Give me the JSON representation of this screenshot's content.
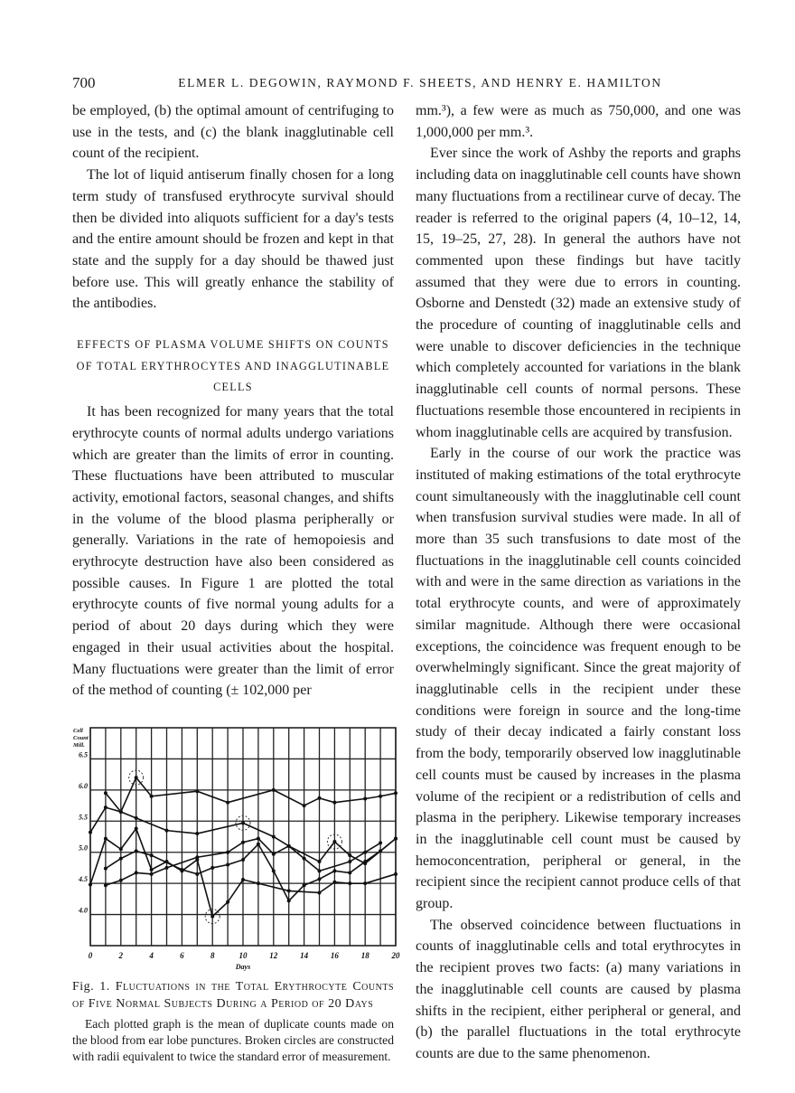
{
  "header": {
    "page_number": "700",
    "authors": "ELMER L. DEGOWIN, RAYMOND F. SHEETS, AND HENRY E. HAMILTON"
  },
  "left": {
    "paragraphs_top": [
      "be employed, (b) the optimal amount of centrifuging to use in the tests, and (c) the blank inagglutinable cell count of the recipient.",
      "The lot of liquid antiserum finally chosen for a long term study of transfused erythrocyte survival should then be divided into aliquots sufficient for a day's tests and the entire amount should be frozen and kept in that state and the supply for a day should be thawed just before use. This will greatly enhance the stability of the antibodies."
    ],
    "section_heading": "Effects of plasma volume shifts on counts of total erythrocytes and inagglutinable cells",
    "paragraphs_bottom": [
      "It has been recognized for many years that the total erythrocyte counts of normal adults undergo variations which are greater than the limits of error in counting. These fluctuations have been attributed to muscular activity, emotional factors, seasonal changes, and shifts in the volume of the blood plasma peripherally or generally. Variations in the rate of hemopoiesis and erythrocyte destruction have also been considered as possible causes. In Figure 1 are plotted the total erythrocyte counts of five normal young adults for a period of about 20 days during which they were engaged in their usual activities about the hospital. Many fluctuations were greater than the limit of error of the method of counting (± 102,000 per"
    ]
  },
  "figure": {
    "label": "Fig. 1.",
    "title": "Fluctuations in the Total Erythrocyte Counts of Five Normal Subjects During a Period of 20 Days",
    "note": "Each plotted graph is the mean of duplicate counts made on the blood from ear lobe punctures. Broken circles are constructed with radii equivalent to twice the standard error of measurement."
  },
  "right": {
    "paragraphs": [
      "mm.³), a few were as much as 750,000, and one was 1,000,000 per mm.³.",
      "Ever since the work of Ashby the reports and graphs including data on inagglutinable cell counts have shown many fluctuations from a rectilinear curve of decay. The reader is referred to the original papers (4, 10–12, 14, 15, 19–25, 27, 28). In general the authors have not commented upon these findings but have tacitly assumed that they were due to errors in counting. Osborne and Denstedt (32) made an extensive study of the procedure of counting of inagglutinable cells and were unable to discover deficiencies in the technique which completely accounted for variations in the blank inagglutinable cell counts of normal persons. These fluctuations resemble those encountered in recipients in whom inagglutinable cells are acquired by transfusion.",
      "Early in the course of our work the practice was instituted of making estimations of the total erythrocyte count simultaneously with the inagglutinable cell count when transfusion survival studies were made. In all of more than 35 such transfusions to date most of the fluctuations in the inagglutinable cell counts coincided with and were in the same direction as variations in the total erythrocyte counts, and were of approximately similar magnitude. Although there were occasional exceptions, the coincidence was frequent enough to be overwhelmingly significant. Since the great majority of inagglutinable cells in the recipient under these conditions were foreign in source and the long-time study of their decay indicated a fairly constant loss from the body, temporarily observed low inagglutinable cell counts must be caused by increases in the plasma volume of the recipient or a redistribution of cells and plasma in the periphery. Likewise temporary increases in the inagglutinable cell count must be caused by hemoconcentration, peripheral or general, in the recipient since the recipient cannot produce cells of that group.",
      "The observed coincidence between fluctuations in counts of inagglutinable cells and total erythrocytes in the recipient proves two facts: (a) many variations in the inagglutinable cell counts are caused by plasma shifts in the recipient, either peripheral or general, and (b) the parallel fluctuations in the total erythrocyte counts are due to the same phenomenon."
    ]
  },
  "chart_data": {
    "type": "line",
    "title": "",
    "xlabel": "Days",
    "ylabel": "Cell Count Mill.",
    "xlim": [
      0,
      20
    ],
    "ylim": [
      3.5,
      7.0
    ],
    "x_ticks": [
      "0",
      "2",
      "4",
      "6",
      "8",
      "10",
      "12",
      "14",
      "16",
      "18",
      "20"
    ],
    "y_ticks": [
      "4.0",
      "4.5",
      "5.0",
      "5.5",
      "6.0",
      "6.5"
    ],
    "grid": true,
    "series": [
      {
        "points": [
          [
            1,
            5.95
          ],
          [
            2,
            5.65
          ],
          [
            3,
            6.2
          ],
          [
            4,
            5.9
          ],
          [
            7,
            5.98
          ],
          [
            9,
            5.8
          ],
          [
            12,
            6.0
          ],
          [
            14,
            5.75
          ],
          [
            15,
            5.87
          ],
          [
            16,
            5.8
          ],
          [
            18,
            5.86
          ],
          [
            19,
            5.9
          ],
          [
            20,
            5.95
          ]
        ]
      },
      {
        "points": [
          [
            0,
            5.32
          ],
          [
            1,
            5.72
          ],
          [
            2,
            5.65
          ],
          [
            3,
            5.55
          ],
          [
            5,
            5.35
          ],
          [
            7,
            5.3
          ],
          [
            10,
            5.47
          ],
          [
            12,
            5.25
          ],
          [
            13,
            5.1
          ],
          [
            15,
            4.85
          ],
          [
            16,
            5.17
          ],
          [
            17,
            4.95
          ],
          [
            18,
            4.82
          ],
          [
            19,
            5.02
          ],
          [
            20,
            5.22
          ]
        ]
      },
      {
        "points": [
          [
            0,
            4.48
          ],
          [
            1,
            5.22
          ],
          [
            2,
            5.05
          ],
          [
            3,
            5.38
          ],
          [
            4,
            4.72
          ],
          [
            5,
            4.85
          ],
          [
            6,
            4.7
          ],
          [
            7,
            4.88
          ],
          [
            8,
            3.97
          ],
          [
            9,
            4.2
          ],
          [
            10,
            4.56
          ],
          [
            11,
            4.5
          ],
          [
            13,
            4.38
          ],
          [
            15,
            4.35
          ],
          [
            16,
            4.52
          ],
          [
            17,
            4.5
          ],
          [
            18,
            4.5
          ],
          [
            20,
            4.65
          ]
        ]
      },
      {
        "points": [
          [
            1,
            4.74
          ],
          [
            2,
            4.9
          ],
          [
            3,
            5.02
          ],
          [
            4,
            4.95
          ],
          [
            6,
            4.72
          ],
          [
            7,
            4.65
          ],
          [
            8,
            4.75
          ],
          [
            9,
            4.8
          ],
          [
            10,
            4.88
          ],
          [
            11,
            5.13
          ],
          [
            12,
            4.7
          ],
          [
            13,
            4.22
          ],
          [
            14,
            4.47
          ],
          [
            15,
            4.57
          ],
          [
            16,
            4.7
          ],
          [
            17,
            4.67
          ],
          [
            18,
            4.85
          ],
          [
            19,
            5.02
          ],
          [
            20,
            5.22
          ]
        ]
      },
      {
        "points": [
          [
            1,
            4.47
          ],
          [
            2,
            4.55
          ],
          [
            3,
            4.67
          ],
          [
            4,
            4.65
          ],
          [
            5,
            4.75
          ],
          [
            7,
            4.92
          ],
          [
            9,
            5.0
          ],
          [
            10,
            5.16
          ],
          [
            11,
            5.22
          ],
          [
            12,
            4.97
          ],
          [
            13,
            5.1
          ],
          [
            14,
            4.9
          ],
          [
            15,
            4.7
          ],
          [
            17,
            4.85
          ],
          [
            18,
            5.0
          ],
          [
            19,
            5.15
          ]
        ]
      }
    ],
    "error_circles": [
      [
        3,
        6.2
      ],
      [
        8,
        3.97
      ],
      [
        10,
        5.47
      ],
      [
        16,
        5.17
      ]
    ]
  }
}
